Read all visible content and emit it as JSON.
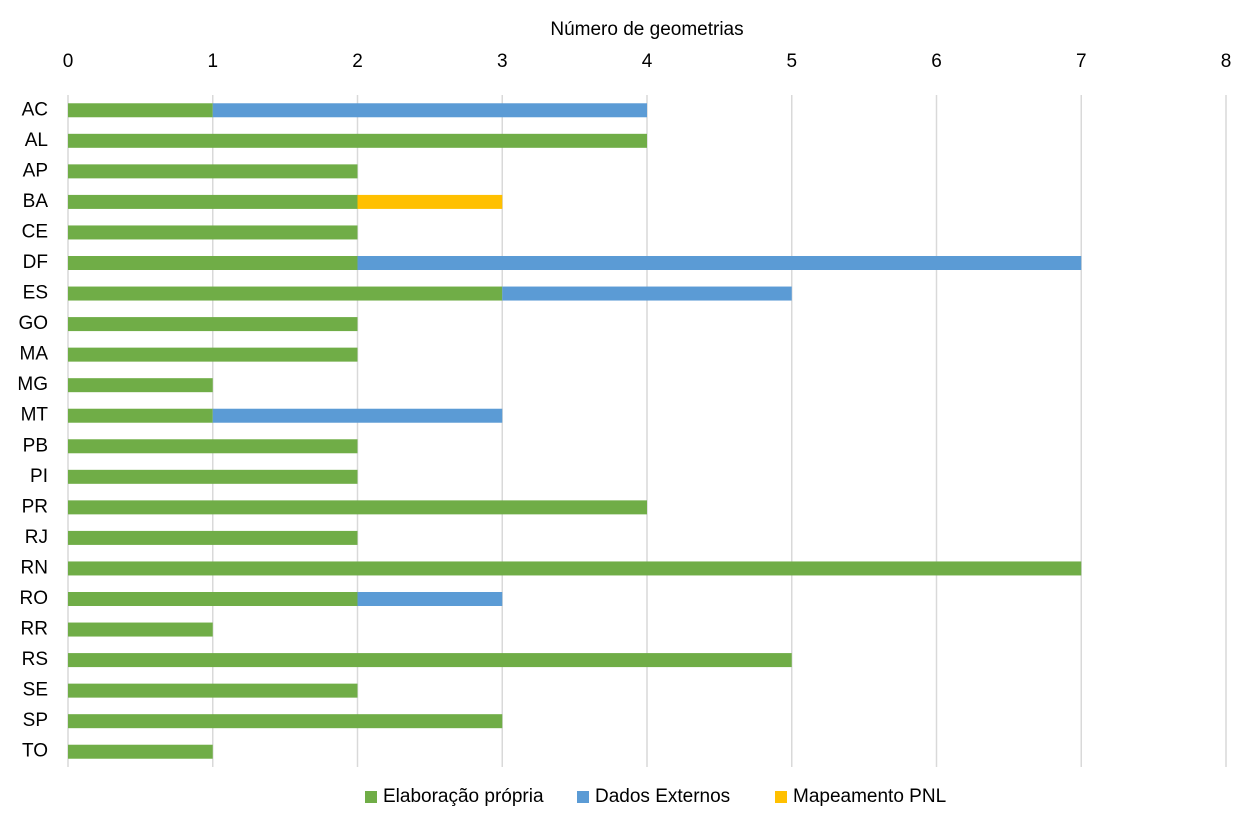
{
  "chart_data": {
    "type": "stacked-barh",
    "x_label": "Número de geometrias",
    "categories": [
      "AC",
      "AL",
      "AP",
      "BA",
      "CE",
      "DF",
      "ES",
      "GO",
      "MA",
      "MG",
      "MT",
      "PB",
      "PI",
      "PR",
      "RJ",
      "RN",
      "RO",
      "RR",
      "RS",
      "SE",
      "SP",
      "TO"
    ],
    "series": [
      {
        "name": "Elaboração própria",
        "color": "#70ad47",
        "values": [
          1,
          4,
          2,
          2,
          2,
          2,
          3,
          2,
          2,
          1,
          1,
          2,
          2,
          4,
          2,
          7,
          2,
          1,
          5,
          2,
          3,
          1
        ]
      },
      {
        "name": "Dados Externos",
        "color": "#5b9bd5",
        "values": [
          3,
          0,
          0,
          0,
          0,
          5,
          2,
          0,
          0,
          0,
          2,
          0,
          0,
          0,
          0,
          0,
          1,
          0,
          0,
          0,
          0,
          0
        ]
      },
      {
        "name": "Mapeamento PNL",
        "color": "#ffc000",
        "values": [
          0,
          0,
          0,
          1,
          0,
          0,
          0,
          0,
          0,
          0,
          0,
          0,
          0,
          0,
          0,
          0,
          0,
          0,
          0,
          0,
          0,
          0
        ]
      }
    ],
    "xlim": [
      0,
      8
    ],
    "xticks": [
      0,
      1,
      2,
      3,
      4,
      5,
      6,
      7,
      8
    ],
    "grid": true,
    "legend": "bottom"
  }
}
